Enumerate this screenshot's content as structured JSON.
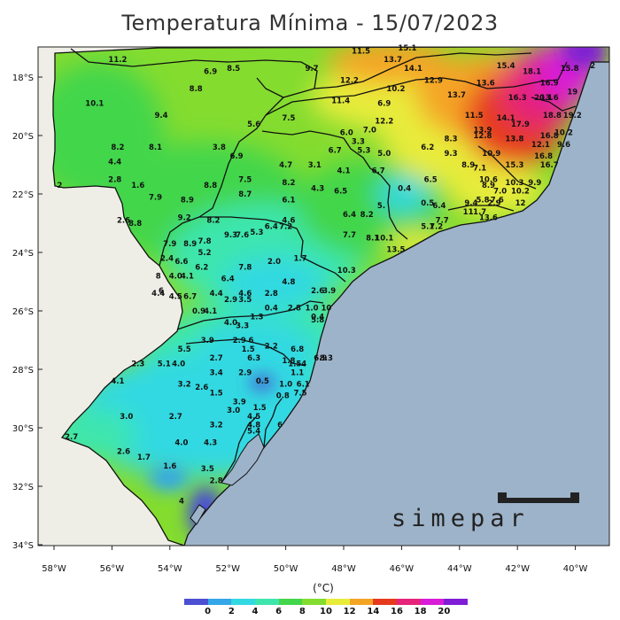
{
  "title": "Temperatura Mínima - 15/07/2023",
  "logo_text": "simepar",
  "legend": {
    "unit": "(°C)",
    "ticks": [
      "0",
      "2",
      "4",
      "6",
      "8",
      "10",
      "12",
      "14",
      "16",
      "18",
      "20"
    ],
    "colors": [
      "#4c4fd2",
      "#35a6e8",
      "#33d9e2",
      "#3ee6ae",
      "#43d64b",
      "#84dc2f",
      "#e8ec3a",
      "#f4a425",
      "#e63a1e",
      "#e5247a",
      "#d81cd8",
      "#7e1cd6"
    ]
  },
  "colors": {
    "ocean": "#9db3c9",
    "foreign": "#eeede6",
    "border": "#111111"
  },
  "axes": {
    "lat_labels": [
      "18°S",
      "20°S",
      "22°S",
      "24°S",
      "26°S",
      "28°S",
      "30°S",
      "32°S",
      "34°S"
    ],
    "lon_labels": [
      "58°W",
      "56°W",
      "54°W",
      "52°W",
      "50°W",
      "48°W",
      "46°W",
      "44°W",
      "42°W",
      "40°W"
    ]
  },
  "stations": [
    {
      "v": "11.2",
      "lon": -55.8,
      "lat": -17.4
    },
    {
      "v": "6.9",
      "lon": -52.6,
      "lat": -17.8
    },
    {
      "v": "8.5",
      "lon": -51.8,
      "lat": -17.7
    },
    {
      "v": "9.7",
      "lon": -49.1,
      "lat": -17.7
    },
    {
      "v": "11.5",
      "lon": -47.4,
      "lat": -17.1
    },
    {
      "v": "15.1",
      "lon": -45.8,
      "lat": -17.0
    },
    {
      "v": "13.7",
      "lon": -46.3,
      "lat": -17.4
    },
    {
      "v": "14.1",
      "lon": -45.6,
      "lat": -17.7
    },
    {
      "v": "15.4",
      "lon": -42.4,
      "lat": -17.6
    },
    {
      "v": "18.1",
      "lon": -41.5,
      "lat": -17.8
    },
    {
      "v": "15.8",
      "lon": -40.2,
      "lat": -17.7
    },
    {
      "v": "2",
      "lon": -39.4,
      "lat": -17.6
    },
    {
      "v": "12.2",
      "lon": -47.8,
      "lat": -18.1
    },
    {
      "v": "12.9",
      "lon": -44.9,
      "lat": -18.1
    },
    {
      "v": "13.6",
      "lon": -43.1,
      "lat": -18.2
    },
    {
      "v": "16.9",
      "lon": -40.9,
      "lat": -18.2
    },
    {
      "v": "10.1",
      "lon": -56.6,
      "lat": -18.9
    },
    {
      "v": "8.8",
      "lon": -53.1,
      "lat": -18.4
    },
    {
      "v": "10.2",
      "lon": -46.2,
      "lat": -18.4
    },
    {
      "v": "13.7",
      "lon": -44.1,
      "lat": -18.6
    },
    {
      "v": "16.3",
      "lon": -42.0,
      "lat": -18.7
    },
    {
      "v": "20.1",
      "lon": -41.1,
      "lat": -18.7
    },
    {
      "v": "19",
      "lon": -40.1,
      "lat": -18.5
    },
    {
      "v": "13.6",
      "lon": -40.9,
      "lat": -18.7
    },
    {
      "v": "11.4",
      "lon": -48.1,
      "lat": -18.8
    },
    {
      "v": "6.9",
      "lon": -46.6,
      "lat": -18.9
    },
    {
      "v": "9.4",
      "lon": -54.3,
      "lat": -19.3
    },
    {
      "v": "7.5",
      "lon": -49.9,
      "lat": -19.4
    },
    {
      "v": "12.2",
      "lon": -46.6,
      "lat": -19.5
    },
    {
      "v": "11.5",
      "lon": -43.5,
      "lat": -19.3
    },
    {
      "v": "14.1",
      "lon": -42.4,
      "lat": -19.4
    },
    {
      "v": "17.9",
      "lon": -41.9,
      "lat": -19.6
    },
    {
      "v": "18.8",
      "lon": -40.8,
      "lat": -19.3
    },
    {
      "v": "19.2",
      "lon": -40.1,
      "lat": -19.3
    },
    {
      "v": "5.6",
      "lon": -51.1,
      "lat": -19.6
    },
    {
      "v": "7.0",
      "lon": -47.1,
      "lat": -19.8
    },
    {
      "v": "6.0",
      "lon": -47.9,
      "lat": -19.9
    },
    {
      "v": "13.9",
      "lon": -43.2,
      "lat": -19.8
    },
    {
      "v": "12.8",
      "lon": -43.2,
      "lat": -20.0
    },
    {
      "v": "16.8",
      "lon": -40.9,
      "lat": -20.0
    },
    {
      "v": "10.2",
      "lon": -40.4,
      "lat": -19.9
    },
    {
      "v": "8.2",
      "lon": -55.8,
      "lat": -20.4
    },
    {
      "v": "8.1",
      "lon": -54.5,
      "lat": -20.4
    },
    {
      "v": "3.8",
      "lon": -52.3,
      "lat": -20.4
    },
    {
      "v": "3.3",
      "lon": -47.5,
      "lat": -20.2
    },
    {
      "v": "6.7",
      "lon": -48.3,
      "lat": -20.5
    },
    {
      "v": "13.8",
      "lon": -42.1,
      "lat": -20.1
    },
    {
      "v": "6.2",
      "lon": -45.1,
      "lat": -20.4
    },
    {
      "v": "8.3",
      "lon": -44.3,
      "lat": -20.1
    },
    {
      "v": "12.1",
      "lon": -41.2,
      "lat": -20.3
    },
    {
      "v": "9.6",
      "lon": -40.4,
      "lat": -20.3
    },
    {
      "v": "5.3",
      "lon": -47.3,
      "lat": -20.5
    },
    {
      "v": "5.0",
      "lon": -46.6,
      "lat": -20.6
    },
    {
      "v": "9.3",
      "lon": -44.3,
      "lat": -20.6
    },
    {
      "v": "10.9",
      "lon": -42.9,
      "lat": -20.6
    },
    {
      "v": "16.8",
      "lon": -41.1,
      "lat": -20.7
    },
    {
      "v": "6.9",
      "lon": -51.7,
      "lat": -20.7
    },
    {
      "v": "4.4",
      "lon": -55.9,
      "lat": -20.9
    },
    {
      "v": "4.7",
      "lon": -50.0,
      "lat": -21.0
    },
    {
      "v": "3.1",
      "lon": -49.0,
      "lat": -21.0
    },
    {
      "v": "4.1",
      "lon": -48.0,
      "lat": -21.2
    },
    {
      "v": "6.7",
      "lon": -46.8,
      "lat": -21.2
    },
    {
      "v": "8.9",
      "lon": -43.7,
      "lat": -21.0
    },
    {
      "v": "7.1",
      "lon": -43.3,
      "lat": -21.1
    },
    {
      "v": "15.3",
      "lon": -42.1,
      "lat": -21.0
    },
    {
      "v": "16.7",
      "lon": -40.9,
      "lat": -21.0
    },
    {
      "v": "2.8",
      "lon": -55.9,
      "lat": -21.5
    },
    {
      "v": "1.6",
      "lon": -55.1,
      "lat": -21.7
    },
    {
      "v": "7.5",
      "lon": -51.4,
      "lat": -21.5
    },
    {
      "v": "8.8",
      "lon": -52.6,
      "lat": -21.7
    },
    {
      "v": "8.2",
      "lon": -49.9,
      "lat": -21.6
    },
    {
      "v": "4.3",
      "lon": -48.9,
      "lat": -21.8
    },
    {
      "v": "6.5",
      "lon": -48.1,
      "lat": -21.9
    },
    {
      "v": "6.5",
      "lon": -45.0,
      "lat": -21.5
    },
    {
      "v": "10.6",
      "lon": -43.0,
      "lat": -21.5
    },
    {
      "v": "10.3",
      "lon": -42.1,
      "lat": -21.6
    },
    {
      "v": "8.9",
      "lon": -43.0,
      "lat": -21.7
    },
    {
      "v": "9.9",
      "lon": -41.4,
      "lat": -21.6
    },
    {
      "v": "2",
      "lon": -57.8,
      "lat": -21.7
    },
    {
      "v": "0.4",
      "lon": -45.9,
      "lat": -21.8
    },
    {
      "v": "10.2",
      "lon": -41.9,
      "lat": -21.9
    },
    {
      "v": "7.0",
      "lon": -42.6,
      "lat": -21.9
    },
    {
      "v": "8.7",
      "lon": -51.4,
      "lat": -22.0
    },
    {
      "v": "7.9",
      "lon": -54.5,
      "lat": -22.1
    },
    {
      "v": "8.9",
      "lon": -53.4,
      "lat": -22.2
    },
    {
      "v": "6.1",
      "lon": -49.9,
      "lat": -22.2
    },
    {
      "v": "0.5",
      "lon": -45.1,
      "lat": -22.3
    },
    {
      "v": "6.4",
      "lon": -44.7,
      "lat": -22.4
    },
    {
      "v": "9.4",
      "lon": -43.6,
      "lat": -22.3
    },
    {
      "v": "5.8",
      "lon": -43.2,
      "lat": -22.2
    },
    {
      "v": "2.9",
      "lon": -42.8,
      "lat": -22.3
    },
    {
      "v": "12",
      "lon": -41.9,
      "lat": -22.3
    },
    {
      "v": "7.6",
      "lon": -42.7,
      "lat": -22.2
    },
    {
      "v": "5.",
      "lon": -46.7,
      "lat": -22.4
    },
    {
      "v": "2.6",
      "lon": -55.6,
      "lat": -22.9
    },
    {
      "v": "6.4",
      "lon": -47.8,
      "lat": -22.7
    },
    {
      "v": "8.2",
      "lon": -47.2,
      "lat": -22.7
    },
    {
      "v": "11",
      "lon": -43.7,
      "lat": -22.6
    },
    {
      "v": "1.7",
      "lon": -43.3,
      "lat": -22.6
    },
    {
      "v": "9.2",
      "lon": -53.5,
      "lat": -22.8
    },
    {
      "v": "8.2",
      "lon": -52.5,
      "lat": -22.9
    },
    {
      "v": "4.6",
      "lon": -49.9,
      "lat": -22.9
    },
    {
      "v": "7.7",
      "lon": -44.6,
      "lat": -22.9
    },
    {
      "v": "7.2",
      "lon": -44.8,
      "lat": -23.1
    },
    {
      "v": "13.6",
      "lon": -43.0,
      "lat": -22.8
    },
    {
      "v": "8.8",
      "lon": -55.2,
      "lat": -23.0
    },
    {
      "v": "6.4",
      "lon": -50.5,
      "lat": -23.1
    },
    {
      "v": "7.2",
      "lon": -50.0,
      "lat": -23.1
    },
    {
      "v": "9.3",
      "lon": -51.9,
      "lat": -23.4
    },
    {
      "v": "7.6",
      "lon": -51.5,
      "lat": -23.4
    },
    {
      "v": "5.3",
      "lon": -51.0,
      "lat": -23.3
    },
    {
      "v": "5.1",
      "lon": -45.1,
      "lat": -23.1
    },
    {
      "v": "7.8",
      "lon": -52.8,
      "lat": -23.6
    },
    {
      "v": "7.7",
      "lon": -47.8,
      "lat": -23.4
    },
    {
      "v": "8.1",
      "lon": -47.0,
      "lat": -23.5
    },
    {
      "v": "10.1",
      "lon": -46.6,
      "lat": -23.5
    },
    {
      "v": "7.9",
      "lon": -54.0,
      "lat": -23.7
    },
    {
      "v": "8.9",
      "lon": -53.3,
      "lat": -23.7
    },
    {
      "v": "5.2",
      "lon": -52.8,
      "lat": -24.0
    },
    {
      "v": "13.5",
      "lon": -46.2,
      "lat": -23.9
    },
    {
      "v": "1.7",
      "lon": -49.5,
      "lat": -24.2
    },
    {
      "v": "2.4",
      "lon": -54.1,
      "lat": -24.2
    },
    {
      "v": "6.6",
      "lon": -53.6,
      "lat": -24.3
    },
    {
      "v": "2.0",
      "lon": -50.4,
      "lat": -24.3
    },
    {
      "v": "6.2",
      "lon": -52.9,
      "lat": -24.5
    },
    {
      "v": "7.8",
      "lon": -51.4,
      "lat": -24.5
    },
    {
      "v": "10.3",
      "lon": -47.9,
      "lat": -24.6
    },
    {
      "v": "4.0",
      "lon": -53.8,
      "lat": -24.8
    },
    {
      "v": "4.1",
      "lon": -53.4,
      "lat": -24.8
    },
    {
      "v": "8",
      "lon": -54.4,
      "lat": -24.8
    },
    {
      "v": "6.4",
      "lon": -52.0,
      "lat": -24.9
    },
    {
      "v": "4.8",
      "lon": -49.9,
      "lat": -25.0
    },
    {
      "v": "6",
      "lon": -54.3,
      "lat": -25.3
    },
    {
      "v": "4.4",
      "lon": -54.4,
      "lat": -25.4
    },
    {
      "v": "4.5",
      "lon": -53.8,
      "lat": -25.5
    },
    {
      "v": "6.7",
      "lon": -53.3,
      "lat": -25.5
    },
    {
      "v": "4.4",
      "lon": -52.4,
      "lat": -25.4
    },
    {
      "v": "4.6",
      "lon": -51.4,
      "lat": -25.4
    },
    {
      "v": "2.8",
      "lon": -50.5,
      "lat": -25.4
    },
    {
      "v": "2.9",
      "lon": -51.9,
      "lat": -25.6
    },
    {
      "v": "3.5",
      "lon": -51.4,
      "lat": -25.6
    },
    {
      "v": "2.6",
      "lon": -48.9,
      "lat": -25.3
    },
    {
      "v": "3.9",
      "lon": -48.5,
      "lat": -25.3
    },
    {
      "v": "0.4",
      "lon": -50.5,
      "lat": -25.9
    },
    {
      "v": "2.8",
      "lon": -49.7,
      "lat": -25.9
    },
    {
      "v": "1.0",
      "lon": -49.1,
      "lat": -25.9
    },
    {
      "v": "10",
      "lon": -48.6,
      "lat": -25.9
    },
    {
      "v": "0.9",
      "lon": -53.0,
      "lat": -26.0
    },
    {
      "v": "4.1",
      "lon": -52.6,
      "lat": -26.0
    },
    {
      "v": "1.3",
      "lon": -51.0,
      "lat": -26.2
    },
    {
      "v": "4.0",
      "lon": -51.9,
      "lat": -26.4
    },
    {
      "v": "3.3",
      "lon": -51.5,
      "lat": -26.5
    },
    {
      "v": "0.4",
      "lon": -48.9,
      "lat": -26.2
    },
    {
      "v": "5.8",
      "lon": -48.9,
      "lat": -26.3
    },
    {
      "v": "3.9",
      "lon": -52.7,
      "lat": -27.0
    },
    {
      "v": "2.9",
      "lon": -51.6,
      "lat": -27.0
    },
    {
      "v": "6",
      "lon": -51.2,
      "lat": -27.0
    },
    {
      "v": "5.5",
      "lon": -53.5,
      "lat": -27.3
    },
    {
      "v": "1.5",
      "lon": -51.3,
      "lat": -27.3
    },
    {
      "v": "2.2",
      "lon": -50.5,
      "lat": -27.2
    },
    {
      "v": "6.8",
      "lon": -49.6,
      "lat": -27.3
    },
    {
      "v": "6.3",
      "lon": -51.1,
      "lat": -27.6
    },
    {
      "v": "2.7",
      "lon": -52.4,
      "lat": -27.6
    },
    {
      "v": "1.8",
      "lon": -49.9,
      "lat": -27.7
    },
    {
      "v": "1.54",
      "lon": -49.6,
      "lat": -27.8
    },
    {
      "v": "6.9",
      "lon": -48.8,
      "lat": -27.6
    },
    {
      "v": "8.3",
      "lon": -48.6,
      "lat": -27.6
    },
    {
      "v": "2.3",
      "lon": -55.1,
      "lat": -27.8
    },
    {
      "v": "5.1",
      "lon": -54.2,
      "lat": -27.8
    },
    {
      "v": "4.0",
      "lon": -53.7,
      "lat": -27.8
    },
    {
      "v": "3.4",
      "lon": -52.4,
      "lat": -28.1
    },
    {
      "v": "2.9",
      "lon": -51.4,
      "lat": -28.1
    },
    {
      "v": "1.1",
      "lon": -49.6,
      "lat": -28.1
    },
    {
      "v": "4.1",
      "lon": -55.8,
      "lat": -28.4
    },
    {
      "v": "0.5",
      "lon": -50.8,
      "lat": -28.4
    },
    {
      "v": "1.0",
      "lon": -50.0,
      "lat": -28.5
    },
    {
      "v": "6.1",
      "lon": -49.4,
      "lat": -28.5
    },
    {
      "v": "3.2",
      "lon": -53.5,
      "lat": -28.5
    },
    {
      "v": "2.6",
      "lon": -52.9,
      "lat": -28.6
    },
    {
      "v": "1.5",
      "lon": -52.4,
      "lat": -28.8
    },
    {
      "v": "7.5",
      "lon": -49.5,
      "lat": -28.8
    },
    {
      "v": "0.8",
      "lon": -50.1,
      "lat": -28.9
    },
    {
      "v": "3.9",
      "lon": -51.6,
      "lat": -29.1
    },
    {
      "v": "3.0",
      "lon": -51.8,
      "lat": -29.4
    },
    {
      "v": "1.5",
      "lon": -50.9,
      "lat": -29.3
    },
    {
      "v": "3.0",
      "lon": -55.5,
      "lat": -29.6
    },
    {
      "v": "2.7",
      "lon": -53.8,
      "lat": -29.6
    },
    {
      "v": "4.5",
      "lon": -51.1,
      "lat": -29.6
    },
    {
      "v": "3.2",
      "lon": -52.4,
      "lat": -29.9
    },
    {
      "v": "4.8",
      "lon": -51.1,
      "lat": -29.9
    },
    {
      "v": "5.4",
      "lon": -51.1,
      "lat": -30.1
    },
    {
      "v": "6",
      "lon": -50.2,
      "lat": -29.9
    },
    {
      "v": "2.7",
      "lon": -57.4,
      "lat": -30.3
    },
    {
      "v": "4.0",
      "lon": -53.6,
      "lat": -30.5
    },
    {
      "v": "4.3",
      "lon": -52.6,
      "lat": -30.5
    },
    {
      "v": "2.6",
      "lon": -55.6,
      "lat": -30.8
    },
    {
      "v": "1.7",
      "lon": -54.9,
      "lat": -31.0
    },
    {
      "v": "1.6",
      "lon": -54.0,
      "lat": -31.3
    },
    {
      "v": "3.5",
      "lon": -52.7,
      "lat": -31.4
    },
    {
      "v": "2.8",
      "lon": -52.4,
      "lat": -31.8
    },
    {
      "v": "4",
      "lon": -53.6,
      "lat": -32.5
    }
  ]
}
